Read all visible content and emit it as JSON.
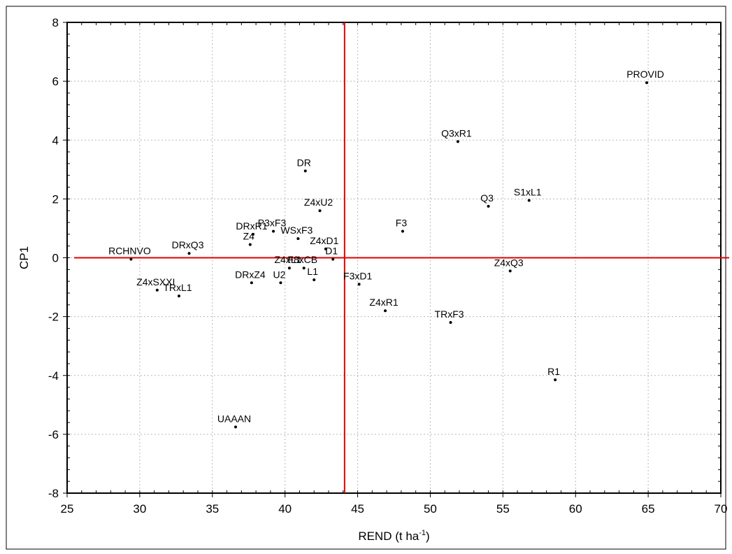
{
  "chart_data": {
    "type": "scatter",
    "title": "",
    "xlabel_main": "REND (t ha",
    "xlabel_sup": "-1",
    "xlabel_close": ")",
    "ylabel": "CP1",
    "xlim": [
      25,
      70
    ],
    "ylim": [
      -8,
      8
    ],
    "xticks": [
      "25",
      "30",
      "35",
      "40",
      "45",
      "50",
      "55",
      "60",
      "65",
      "70"
    ],
    "yticks": [
      "-8",
      "-6",
      "-4",
      "-2",
      "0",
      "2",
      "4",
      "6",
      "8"
    ],
    "grid": true,
    "reference_lines": {
      "x": 44.1,
      "y": 0,
      "color": "#e00000"
    },
    "points": [
      {
        "label": "PROVID",
        "x": 64.9,
        "y": 5.95
      },
      {
        "label": "Q3xR1",
        "x": 51.9,
        "y": 3.95
      },
      {
        "label": "DR",
        "x": 41.4,
        "y": 2.95
      },
      {
        "label": "S1xL1",
        "x": 56.8,
        "y": 1.95
      },
      {
        "label": "Q3",
        "x": 54.0,
        "y": 1.75
      },
      {
        "label": "Z4xU2",
        "x": 42.4,
        "y": 1.6
      },
      {
        "label": "F3",
        "x": 48.1,
        "y": 0.9
      },
      {
        "label": "DRxR1",
        "x": 37.8,
        "y": 0.8
      },
      {
        "label": "P3xF3",
        "x": 39.2,
        "y": 0.9
      },
      {
        "label": "WSxF3",
        "x": 40.9,
        "y": 0.65
      },
      {
        "label": "Z4",
        "x": 37.6,
        "y": 0.45
      },
      {
        "label": "Z4xD1",
        "x": 42.8,
        "y": 0.3
      },
      {
        "label": "DRxQ3",
        "x": 33.4,
        "y": 0.15
      },
      {
        "label": "D1",
        "x": 43.3,
        "y": -0.05
      },
      {
        "label": "RCHNVO",
        "x": 29.4,
        "y": -0.05
      },
      {
        "label": "Z4xQ3",
        "x": 55.5,
        "y": -0.45
      },
      {
        "label": "F8xCB",
        "x": 41.3,
        "y": -0.35
      },
      {
        "label": "Z4xL1",
        "x": 40.3,
        "y": -0.35
      },
      {
        "label": "L1",
        "x": 42.0,
        "y": -0.75
      },
      {
        "label": "U2",
        "x": 39.7,
        "y": -0.85
      },
      {
        "label": "DRxZ4",
        "x": 37.7,
        "y": -0.85
      },
      {
        "label": "F3xD1",
        "x": 45.1,
        "y": -0.9
      },
      {
        "label": "Z4xSXXI",
        "x": 31.2,
        "y": -1.1
      },
      {
        "label": "TRxL1",
        "x": 32.7,
        "y": -1.3
      },
      {
        "label": "Z4xR1",
        "x": 46.9,
        "y": -1.8
      },
      {
        "label": "TRxF3",
        "x": 51.4,
        "y": -2.2
      },
      {
        "label": "R1",
        "x": 58.6,
        "y": -4.15
      },
      {
        "label": "UAAAN",
        "x": 36.6,
        "y": -5.75
      }
    ]
  }
}
